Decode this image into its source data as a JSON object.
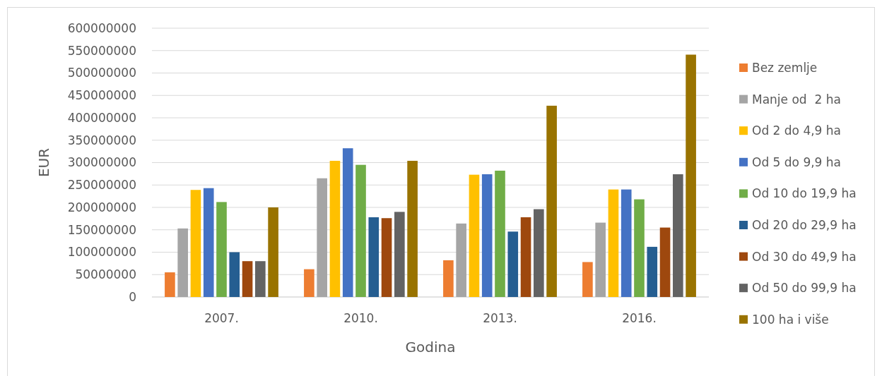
{
  "chart_data": {
    "type": "bar",
    "xlabel": "Godina",
    "ylabel": "EUR",
    "categories": [
      "2007.",
      "2010.",
      "2013.",
      "2016."
    ],
    "series": [
      {
        "name": "Bez zemlje",
        "color": "#ed7d31",
        "values": [
          55000000,
          62000000,
          82000000,
          78000000
        ]
      },
      {
        "name": "Manje od  2 ha",
        "color": "#a5a5a5",
        "values": [
          153000000,
          265000000,
          164000000,
          166000000
        ]
      },
      {
        "name": "Od 2 do 4,9 ha",
        "color": "#ffc000",
        "values": [
          239000000,
          304000000,
          273000000,
          240000000
        ]
      },
      {
        "name": "Od 5 do 9,9 ha",
        "color": "#4472c4",
        "values": [
          243000000,
          332000000,
          274000000,
          240000000
        ]
      },
      {
        "name": "Od 10 do 19,9 ha",
        "color": "#70ad47",
        "values": [
          212000000,
          295000000,
          282000000,
          218000000
        ]
      },
      {
        "name": "Od 20 do 29,9 ha",
        "color": "#255e91",
        "values": [
          100000000,
          178000000,
          146000000,
          112000000
        ]
      },
      {
        "name": "Od 30 do 49,9 ha",
        "color": "#9e480e",
        "values": [
          80000000,
          176000000,
          178000000,
          155000000
        ]
      },
      {
        "name": "Od 50 do 99,9 ha",
        "color": "#636363",
        "values": [
          80000000,
          190000000,
          196000000,
          274000000
        ]
      },
      {
        "name": "100 ha i više",
        "color": "#997300",
        "values": [
          200000000,
          304000000,
          427000000,
          541000000
        ]
      }
    ],
    "ylim": [
      0,
      600000000
    ],
    "yticks": [
      0,
      50000000,
      100000000,
      150000000,
      200000000,
      250000000,
      300000000,
      350000000,
      400000000,
      450000000,
      500000000,
      550000000,
      600000000
    ],
    "grid": "y",
    "legend": "right"
  }
}
